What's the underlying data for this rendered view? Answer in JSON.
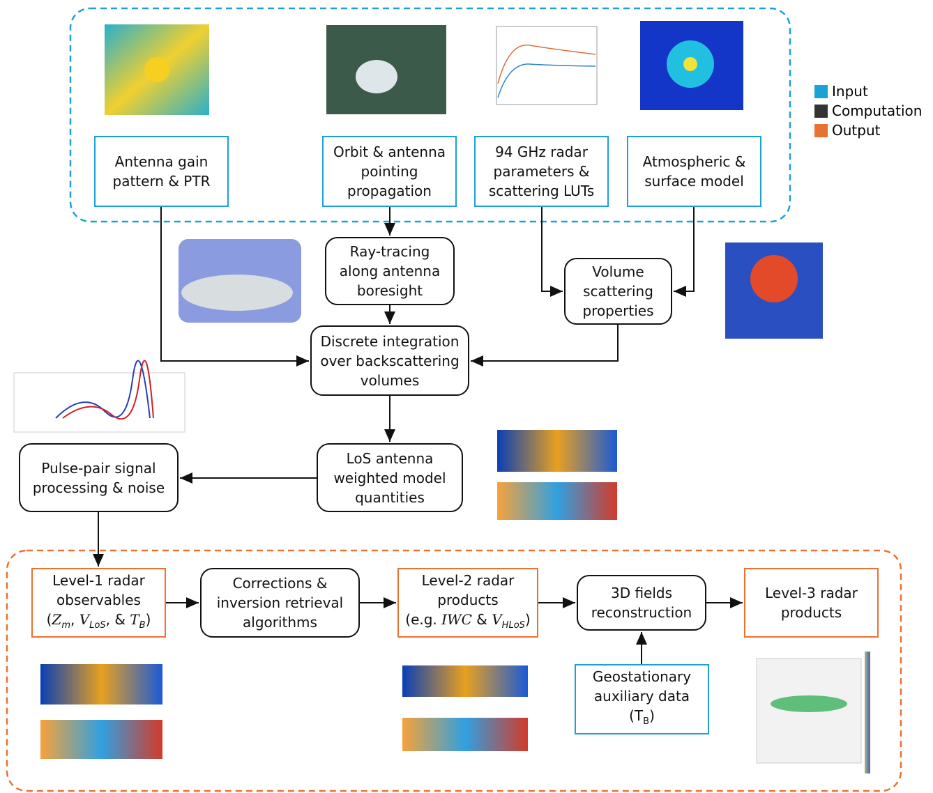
{
  "nodes": [
    {
      "kind": "input",
      "lines": [
        "Antenna gain",
        "pattern & PTR"
      ]
    },
    {
      "kind": "input",
      "lines": [
        "Orbit & antenna",
        "pointing",
        "propagation"
      ]
    },
    {
      "kind": "input",
      "lines": [
        "94 GHz radar",
        "parameters &",
        "scattering LUTs"
      ]
    },
    {
      "kind": "input",
      "lines": [
        "Atmospheric &",
        "surface model"
      ]
    },
    {
      "kind": "computation",
      "lines": [
        "Ray-tracing",
        "along antenna",
        "boresight"
      ]
    },
    {
      "kind": "computation",
      "lines": [
        "Volume",
        "scattering",
        "properties"
      ]
    },
    {
      "kind": "computation",
      "lines": [
        "Discrete integration",
        "over backscattering",
        "volumes"
      ]
    },
    {
      "kind": "computation",
      "lines": [
        "LoS antenna",
        "weighted model",
        "quantities"
      ]
    },
    {
      "kind": "computation",
      "lines": [
        "Pulse-pair signal",
        "processing & noise"
      ]
    },
    {
      "kind": "output",
      "lines": [
        "Level-1 radar",
        "observables",
        [
          {
            "text": "(",
            "math": "Z",
            "sub": "m"
          },
          {
            "text": ", ",
            "math": "V",
            "sub": "LoS"
          },
          {
            "text": ", & ",
            "math": "T",
            "sub": "B"
          },
          {
            "text": ")"
          }
        ]
      ]
    },
    {
      "kind": "computation",
      "lines": [
        "Corrections &",
        "inversion retrieval",
        "algorithms"
      ]
    },
    {
      "kind": "output",
      "lines": [
        "Level-2 radar",
        "products",
        [
          {
            "text": "(e.g. ",
            "math": "IWC"
          },
          {
            "text": " & ",
            "math": "V",
            "sub": "HLoS"
          },
          {
            "text": ")"
          }
        ]
      ]
    },
    {
      "kind": "computation",
      "lines": [
        "3D fields",
        "reconstruction"
      ]
    },
    {
      "kind": "output",
      "lines": [
        "Level-3 radar",
        "products"
      ]
    },
    {
      "kind": "input",
      "lines": [
        "Geostationary",
        "auxiliary data",
        [
          {
            "text": "(T",
            "sub": "B"
          },
          {
            "text": ")"
          }
        ]
      ]
    }
  ],
  "legend": [
    {
      "label": "Input",
      "color": "#1ba1d6"
    },
    {
      "label": "Computation",
      "color": "#333333"
    },
    {
      "label": "Output",
      "color": "#e97132"
    }
  ]
}
